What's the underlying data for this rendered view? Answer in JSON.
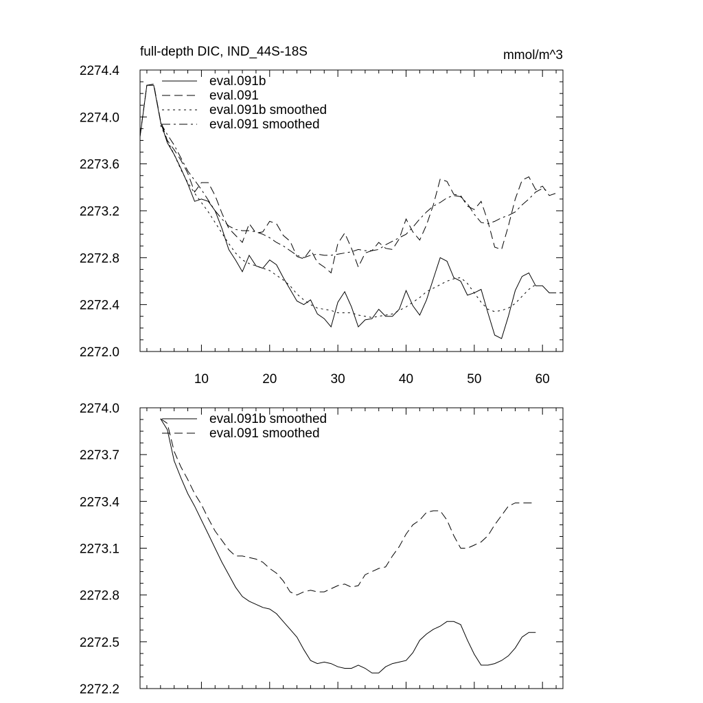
{
  "chart_data": [
    {
      "type": "line",
      "title": "full-depth DIC, IND_44S-18S",
      "units": "mmol/m^3",
      "xlabel": "",
      "ylabel": "",
      "xlim": [
        1,
        63
      ],
      "ylim": [
        2272.0,
        2274.4
      ],
      "xticks": [
        10,
        20,
        30,
        40,
        50,
        60
      ],
      "xtick_labels": [
        "10",
        "20",
        "30",
        "40",
        "50",
        "60"
      ],
      "yticks": [
        2272.0,
        2272.4,
        2272.8,
        2273.2,
        2273.6,
        2274.0,
        2274.4
      ],
      "ytick_labels": [
        "2272.0",
        "2272.4",
        "2272.8",
        "2273.2",
        "2273.6",
        "2274.0",
        "2274.4"
      ],
      "legend_position": "top-left",
      "x": [
        1,
        2,
        3,
        4,
        5,
        6,
        7,
        8,
        9,
        10,
        11,
        12,
        13,
        14,
        15,
        16,
        17,
        18,
        19,
        20,
        21,
        22,
        23,
        24,
        25,
        26,
        27,
        28,
        29,
        30,
        31,
        32,
        33,
        34,
        35,
        36,
        37,
        38,
        39,
        40,
        41,
        42,
        43,
        44,
        45,
        46,
        47,
        48,
        49,
        50,
        51,
        52,
        53,
        54,
        55,
        56,
        57,
        58,
        59,
        60,
        61,
        62
      ],
      "series": [
        {
          "name": "eval.091b",
          "style": "solid",
          "values": [
            2273.83,
            2274.27,
            2274.27,
            2273.96,
            2273.78,
            2273.68,
            2273.56,
            2273.43,
            2273.28,
            2273.3,
            2273.28,
            2273.2,
            2273.05,
            2272.87,
            2272.78,
            2272.68,
            2272.82,
            2272.73,
            2272.71,
            2272.78,
            2272.74,
            2272.63,
            2272.53,
            2272.43,
            2272.4,
            2272.44,
            2272.32,
            2272.28,
            2272.21,
            2272.42,
            2272.51,
            2272.38,
            2272.21,
            2272.27,
            2272.28,
            2272.36,
            2272.3,
            2272.3,
            2272.36,
            2272.52,
            2272.39,
            2272.31,
            2272.44,
            2272.62,
            2272.8,
            2272.77,
            2272.63,
            2272.6,
            2272.48,
            2272.5,
            2272.53,
            2272.33,
            2272.14,
            2272.11,
            2272.3,
            2272.52,
            2272.64,
            2272.67,
            2272.56,
            2272.56,
            2272.5,
            2272.5
          ]
        },
        {
          "name": "eval.091",
          "style": "dashed",
          "values": [
            2273.84,
            2274.27,
            2274.28,
            2273.97,
            2273.8,
            2273.72,
            2273.63,
            2273.52,
            2273.36,
            2273.44,
            2273.44,
            2273.33,
            2273.18,
            2273.05,
            2272.99,
            2272.93,
            2273.09,
            2273.01,
            2273.02,
            2273.11,
            2273.09,
            2272.99,
            2272.94,
            2272.81,
            2272.79,
            2272.87,
            2272.76,
            2272.72,
            2272.67,
            2272.92,
            2273.01,
            2272.88,
            2272.72,
            2272.84,
            2272.86,
            2272.93,
            2272.88,
            2272.87,
            2272.96,
            2273.13,
            2273.02,
            2272.95,
            2273.08,
            2273.25,
            2273.47,
            2273.45,
            2273.34,
            2273.33,
            2273.24,
            2273.21,
            2273.28,
            2273.11,
            2272.89,
            2272.87,
            2273.07,
            2273.3,
            2273.46,
            2273.49,
            2273.38,
            2273.41,
            2273.33,
            2273.35
          ]
        },
        {
          "name": "eval.091b smoothed",
          "style": "dotted",
          "values": [
            null,
            null,
            null,
            2273.93,
            2273.8,
            2273.68,
            2273.55,
            2273.44,
            2273.35,
            2273.27,
            2273.19,
            2273.1,
            2273.01,
            2272.92,
            2272.84,
            2272.78,
            2272.75,
            2272.73,
            2272.71,
            2272.69,
            2272.65,
            2272.61,
            2272.56,
            2272.49,
            2272.44,
            2272.4,
            2272.37,
            2272.36,
            2272.35,
            2272.33,
            2272.33,
            2272.33,
            2272.31,
            2272.3,
            2272.29,
            2272.3,
            2272.31,
            2272.32,
            2272.35,
            2272.38,
            2272.42,
            2272.46,
            2272.51,
            2272.54,
            2272.57,
            2272.6,
            2272.62,
            2272.63,
            2272.58,
            2272.5,
            2272.42,
            2272.36,
            2272.34,
            2272.35,
            2272.37,
            2272.41,
            2272.47,
            2272.53,
            2272.57,
            null,
            null,
            null
          ]
        },
        {
          "name": "eval.091 smoothed",
          "style": "dash-dot",
          "values": [
            null,
            null,
            null,
            2273.95,
            2273.85,
            2273.76,
            2273.65,
            2273.54,
            2273.46,
            2273.38,
            2273.29,
            2273.2,
            2273.13,
            2273.07,
            2273.04,
            2273.03,
            2273.03,
            2273.02,
            2273.0,
            2272.97,
            2272.93,
            2272.9,
            2272.86,
            2272.82,
            2272.8,
            2272.82,
            2272.83,
            2272.82,
            2272.82,
            2272.83,
            2272.84,
            2272.85,
            2272.87,
            2272.86,
            2272.86,
            2272.87,
            2272.91,
            2272.94,
            2272.97,
            2273.0,
            2273.06,
            2273.13,
            2273.19,
            2273.24,
            2273.27,
            2273.31,
            2273.33,
            2273.32,
            2273.26,
            2273.17,
            2273.1,
            2273.09,
            2273.11,
            2273.14,
            2273.16,
            2273.19,
            2273.25,
            2273.3,
            2273.36,
            2273.39,
            2273.36,
            null
          ]
        }
      ]
    },
    {
      "type": "line",
      "title": "",
      "xlabel": "",
      "ylabel": "",
      "xlim": [
        1,
        63
      ],
      "ylim": [
        2272.2,
        2274.0
      ],
      "xticks": [
        10,
        20,
        30,
        40,
        50,
        60
      ],
      "xtick_labels": [],
      "yticks": [
        2272.2,
        2272.5,
        2272.8,
        2273.1,
        2273.4,
        2273.7,
        2274.0
      ],
      "ytick_labels": [
        "2272.2",
        "2272.5",
        "2272.8",
        "2273.1",
        "2273.4",
        "2273.7",
        "2274.0"
      ],
      "legend_position": "top-left",
      "x": [
        4,
        5,
        6,
        7,
        8,
        9,
        10,
        11,
        12,
        13,
        14,
        15,
        16,
        17,
        18,
        19,
        20,
        21,
        22,
        23,
        24,
        25,
        26,
        27,
        28,
        29,
        30,
        31,
        32,
        33,
        34,
        35,
        36,
        37,
        38,
        39,
        40,
        41,
        42,
        43,
        44,
        45,
        46,
        47,
        48,
        49,
        50,
        51,
        52,
        53,
        54,
        55,
        56,
        57,
        58,
        59
      ],
      "series": [
        {
          "name": "eval.091b smoothed",
          "style": "solid",
          "values": [
            2273.93,
            2273.86,
            2273.66,
            2273.55,
            2273.45,
            2273.37,
            2273.28,
            2273.19,
            2273.1,
            2273.01,
            2272.93,
            2272.85,
            2272.79,
            2272.76,
            2272.74,
            2272.72,
            2272.71,
            2272.68,
            2272.63,
            2272.58,
            2272.53,
            2272.45,
            2272.38,
            2272.36,
            2272.37,
            2272.36,
            2272.34,
            2272.33,
            2272.33,
            2272.35,
            2272.33,
            2272.3,
            2272.3,
            2272.34,
            2272.36,
            2272.37,
            2272.38,
            2272.43,
            2272.51,
            2272.55,
            2272.58,
            2272.6,
            2272.63,
            2272.63,
            2272.61,
            2272.51,
            2272.42,
            2272.35,
            2272.35,
            2272.36,
            2272.38,
            2272.41,
            2272.46,
            2272.53,
            2272.56,
            2272.56
          ]
        },
        {
          "name": "eval.091 smoothed",
          "style": "dashed",
          "values": [
            2273.93,
            2273.9,
            2273.72,
            2273.62,
            2273.54,
            2273.45,
            2273.38,
            2273.29,
            2273.21,
            2273.15,
            2273.09,
            2273.05,
            2273.05,
            2273.04,
            2273.03,
            2273.01,
            2272.97,
            2272.94,
            2272.89,
            2272.82,
            2272.8,
            2272.82,
            2272.83,
            2272.82,
            2272.82,
            2272.84,
            2272.86,
            2272.87,
            2272.85,
            2272.86,
            2272.93,
            2272.95,
            2272.97,
            2272.98,
            2273.05,
            2273.11,
            2273.19,
            2273.25,
            2273.28,
            2273.33,
            2273.34,
            2273.34,
            2273.28,
            2273.18,
            2273.1,
            2273.1,
            2273.12,
            2273.14,
            2273.18,
            2273.25,
            2273.31,
            2273.37,
            2273.39,
            2273.39,
            2273.39,
            2273.39
          ]
        }
      ]
    }
  ]
}
